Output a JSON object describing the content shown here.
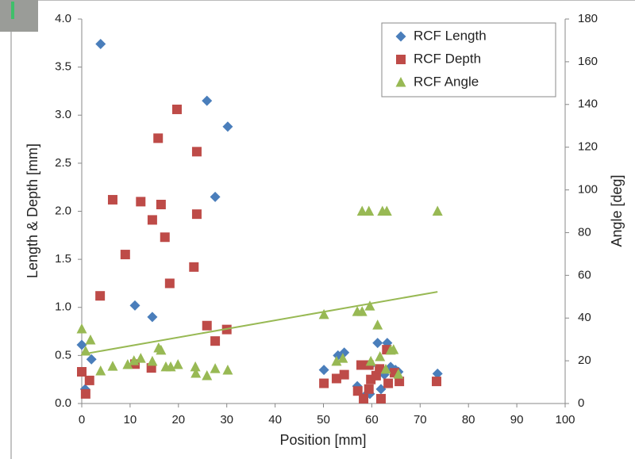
{
  "chart_data": {
    "type": "scatter",
    "x_label": "Position [mm]",
    "y_label": "Length & Depth [mm]",
    "y2_label": "Angle [deg]",
    "xlim": [
      0,
      100
    ],
    "xticks": [
      0,
      10,
      20,
      30,
      40,
      50,
      60,
      70,
      80,
      90,
      100
    ],
    "ylim": [
      0,
      4
    ],
    "yticks": [
      {
        "value": 0,
        "label": "0.0"
      },
      0.5,
      {
        "value": 1,
        "label": "1.0"
      },
      1.5,
      {
        "value": 2,
        "label": "2.0"
      },
      2.5,
      {
        "value": 3,
        "label": "3.0"
      },
      3.5,
      {
        "value": 4,
        "label": "4.0"
      }
    ],
    "y2lim": [
      0,
      180
    ],
    "y2ticks": [
      0,
      20,
      40,
      60,
      80,
      100,
      120,
      140,
      160,
      180
    ],
    "grid": false,
    "legend": "top-right",
    "series": [
      {
        "name": "RCF Length",
        "color": "#4a7ebb",
        "marker": "diamond",
        "x": [
          3.9,
          0,
          0.7,
          2,
          11,
          14.6,
          25.9,
          30.2,
          27.6,
          50.1,
          53,
          54.3,
          57,
          59,
          59.6,
          61.2,
          63.2,
          61.9,
          63.9,
          64.9,
          65.5,
          73.6,
          59.8,
          62.6
        ],
        "values": [
          3.74,
          0.61,
          0.15,
          0.46,
          1.02,
          0.9,
          3.15,
          2.88,
          2.15,
          0.35,
          0.5,
          0.53,
          0.18,
          0.1,
          0.1,
          0.63,
          0.63,
          0.15,
          0.38,
          0.35,
          0.33,
          0.31,
          0.4,
          0.3
        ]
      },
      {
        "name": "RCF Depth",
        "color": "#be4b48",
        "marker": "square",
        "x": [
          0,
          0.8,
          1.6,
          3.8,
          6.4,
          9,
          11,
          12.2,
          14.4,
          14.6,
          15.8,
          16.4,
          17.2,
          18.2,
          19.7,
          23.2,
          23.8,
          23.8,
          25.9,
          27.6,
          30,
          50.1,
          52.7,
          54.3,
          57.1,
          57.8,
          58.3,
          59.4,
          59.8,
          59.4,
          60.9,
          61.9,
          61.6,
          63.1,
          63.4,
          64.7,
          65.7,
          73.4
        ],
        "values": [
          0.33,
          0.1,
          0.24,
          1.12,
          2.12,
          1.55,
          0.41,
          2.1,
          0.37,
          1.91,
          2.76,
          2.07,
          1.73,
          1.25,
          3.06,
          1.42,
          2.62,
          1.97,
          0.81,
          0.65,
          0.77,
          0.21,
          0.26,
          0.3,
          0.13,
          0.4,
          0.05,
          0.15,
          0.25,
          0.4,
          0.29,
          0.05,
          0.36,
          0.56,
          0.21,
          0.32,
          0.23,
          0.23
        ]
      },
      {
        "name": "RCF Angle",
        "color": "#98b954",
        "marker": "triangle",
        "axis": "y2",
        "x": [
          0,
          0.8,
          1.8,
          3.9,
          6.4,
          9.5,
          10.8,
          12.2,
          14.6,
          15.9,
          16.4,
          17.4,
          18.4,
          19.9,
          23.5,
          23.6,
          25.9,
          27.6,
          30.2,
          50.1,
          52.7,
          54,
          57,
          58,
          58,
          59.4,
          59.8,
          59.6,
          61.2,
          62.2,
          63.1,
          61.7,
          62.9,
          63.9,
          64.5,
          65.5,
          73.6
        ],
        "values": [
          34.9,
          24.5,
          29.7,
          15.2,
          17.4,
          18.2,
          20,
          21.1,
          19.7,
          26,
          24.9,
          17.1,
          17.1,
          18.2,
          17.1,
          14.1,
          13,
          16.3,
          15.6,
          41.6,
          19.7,
          21.1,
          43,
          43,
          90,
          90,
          19.7,
          45.6,
          36.7,
          90,
          90,
          21.9,
          16,
          24.9,
          25.2,
          13.7,
          90
        ]
      }
    ],
    "trendline": {
      "color": "#98b954",
      "axis": "y2",
      "x": [
        0,
        73.6
      ],
      "values": [
        23,
        52.3
      ]
    }
  }
}
